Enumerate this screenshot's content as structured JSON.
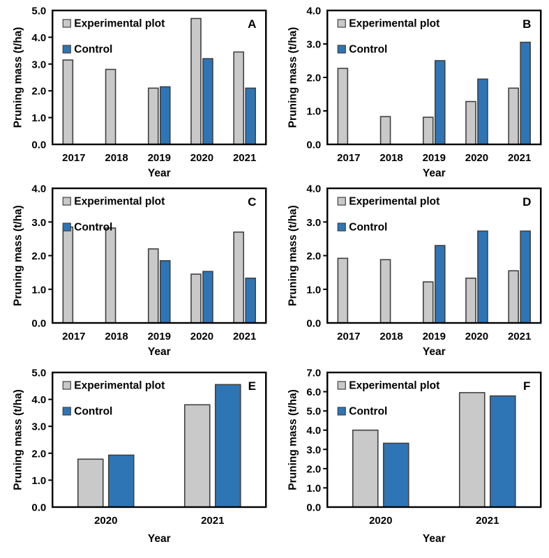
{
  "figure": {
    "background": "#FFFFFF",
    "colors": {
      "experimental": "#C9C9C9",
      "control": "#2E75B6",
      "bar_border": "#404040",
      "axis": "#000000",
      "text": "#000000"
    },
    "legend_labels": [
      "Experimental plot",
      "Control"
    ]
  },
  "chart_data": [
    {
      "type": "bar",
      "panel_label": "A",
      "title": "",
      "xlabel": "Year",
      "ylabel": "Pruning mass (t/ha)",
      "ylim": [
        0,
        5
      ],
      "ytick_step": 1,
      "grid": false,
      "legend_position": "top-left",
      "categories": [
        "2017",
        "2018",
        "2019",
        "2020",
        "2021"
      ],
      "series": [
        {
          "name": "Experimental plot",
          "color_key": "experimental",
          "values": [
            3.15,
            2.8,
            2.1,
            4.7,
            3.45
          ]
        },
        {
          "name": "Control",
          "color_key": "control",
          "values": [
            null,
            null,
            2.15,
            3.2,
            2.1
          ]
        }
      ]
    },
    {
      "type": "bar",
      "panel_label": "B",
      "title": "",
      "xlabel": "Year",
      "ylabel": "Pruning mass (t/ha)",
      "ylim": [
        0,
        4
      ],
      "ytick_step": 1,
      "grid": false,
      "legend_position": "top-left",
      "categories": [
        "2017",
        "2018",
        "2019",
        "2020",
        "2021"
      ],
      "series": [
        {
          "name": "Experimental plot",
          "color_key": "experimental",
          "values": [
            2.27,
            0.83,
            0.81,
            1.28,
            1.68
          ]
        },
        {
          "name": "Control",
          "color_key": "control",
          "values": [
            null,
            null,
            2.5,
            1.95,
            3.05
          ]
        }
      ]
    },
    {
      "type": "bar",
      "panel_label": "C",
      "title": "",
      "xlabel": "Year",
      "ylabel": "Pruning mass (t/ha)",
      "ylim": [
        0,
        4
      ],
      "ytick_step": 1,
      "grid": false,
      "legend_position": "top-left",
      "categories": [
        "2017",
        "2018",
        "2019",
        "2020",
        "2021"
      ],
      "series": [
        {
          "name": "Experimental plot",
          "color_key": "experimental",
          "values": [
            2.85,
            2.82,
            2.2,
            1.45,
            2.7
          ]
        },
        {
          "name": "Control",
          "color_key": "control",
          "values": [
            null,
            null,
            1.85,
            1.53,
            1.33
          ]
        }
      ]
    },
    {
      "type": "bar",
      "panel_label": "D",
      "title": "",
      "xlabel": "Year",
      "ylabel": "Pruning mass (t/ha)",
      "ylim": [
        0,
        4
      ],
      "ytick_step": 1,
      "grid": false,
      "legend_position": "top-left",
      "categories": [
        "2017",
        "2018",
        "2019",
        "2020",
        "2021"
      ],
      "series": [
        {
          "name": "Experimental plot",
          "color_key": "experimental",
          "values": [
            1.92,
            1.88,
            1.22,
            1.33,
            1.55
          ]
        },
        {
          "name": "Control",
          "color_key": "control",
          "values": [
            null,
            null,
            2.3,
            2.73,
            2.73
          ]
        }
      ]
    },
    {
      "type": "bar",
      "panel_label": "E",
      "title": "",
      "xlabel": "Year",
      "ylabel": "Pruning mass (t/ha)",
      "ylim": [
        0,
        5
      ],
      "ytick_step": 1,
      "grid": false,
      "legend_position": "top-left",
      "categories": [
        "2020",
        "2021"
      ],
      "series": [
        {
          "name": "Experimental plot",
          "color_key": "experimental",
          "values": [
            1.78,
            3.8
          ]
        },
        {
          "name": "Control",
          "color_key": "control",
          "values": [
            1.93,
            4.55
          ]
        }
      ]
    },
    {
      "type": "bar",
      "panel_label": "F",
      "title": "",
      "xlabel": "Year",
      "ylabel": "Pruning mass (t/ha)",
      "ylim": [
        0,
        7
      ],
      "ytick_step": 1,
      "grid": false,
      "legend_position": "top-left",
      "categories": [
        "2020",
        "2021"
      ],
      "series": [
        {
          "name": "Experimental plot",
          "color_key": "experimental",
          "values": [
            4.0,
            5.95
          ]
        },
        {
          "name": "Control",
          "color_key": "control",
          "values": [
            3.32,
            5.78
          ]
        }
      ]
    }
  ]
}
